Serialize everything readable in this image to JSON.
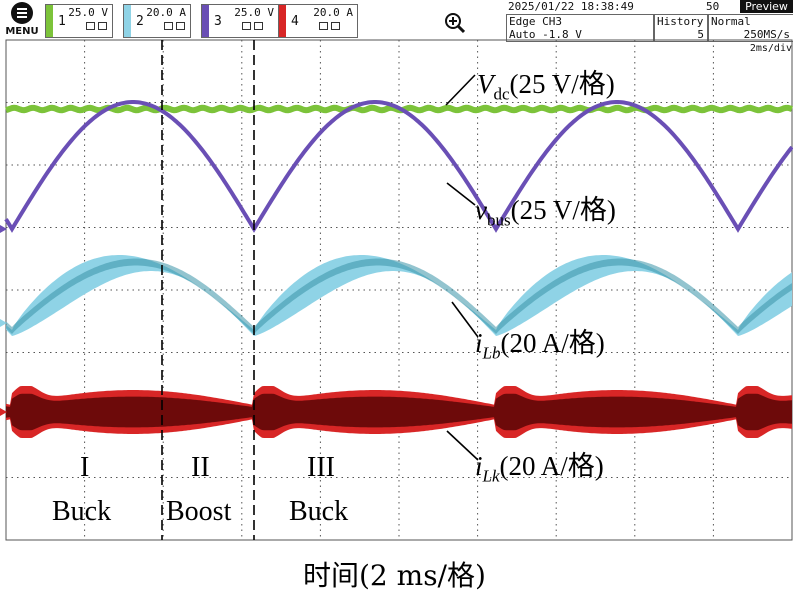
{
  "menu": {
    "label": "MENU"
  },
  "channels": [
    {
      "number": "1",
      "scale": "25.0 V",
      "color": "#7cc33a"
    },
    {
      "number": "2",
      "scale": "20.0 A",
      "color": "#8fd3e6"
    },
    {
      "number": "3",
      "scale": "25.0 V",
      "color": "#6a4fb5"
    },
    {
      "number": "4",
      "scale": "20.0 A",
      "color": "#d82626"
    }
  ],
  "status": {
    "datetime": "2025/01/22 18:38:49",
    "count": "50",
    "preview": "Preview",
    "trigger_mode": "Edge CH3",
    "trigger_level": "Auto -1.8 V",
    "history_label": "History",
    "history_value": "5",
    "acq_mode": "Normal",
    "sample_rate": "250MS/s",
    "timebase": "2ms/div"
  },
  "annotations": {
    "vdc_main": "V",
    "vdc_sub": "dc",
    "vdc_scale": "(25 V/格)",
    "vbus_main": "v",
    "vbus_sub": "bus",
    "vbus_scale": "(25 V/格)",
    "ilb_main": "i",
    "ilb_sub": "Lb",
    "ilb_scale": "(20 A/格)",
    "ilk_main": "i",
    "ilk_sub": "Lk",
    "ilk_scale": "(20 A/格)"
  },
  "regions": [
    {
      "numeral": "I",
      "mode": "Buck"
    },
    {
      "numeral": "II",
      "mode": "Boost"
    },
    {
      "numeral": "III",
      "mode": "Buck"
    }
  ],
  "x_axis_label": "时间(2 ms/格)",
  "colors": {
    "vdc": "#7cc33a",
    "vbus": "#6a4fb5",
    "ilb": "#8fd3e6",
    "ilb_dark": "#3a93a8",
    "ilk": "#d82626",
    "ilk_dark": "#5a0606",
    "grid": "#555555"
  },
  "icons": {
    "zoom": "zoom-plus-icon",
    "menu": "hamburger-icon"
  }
}
